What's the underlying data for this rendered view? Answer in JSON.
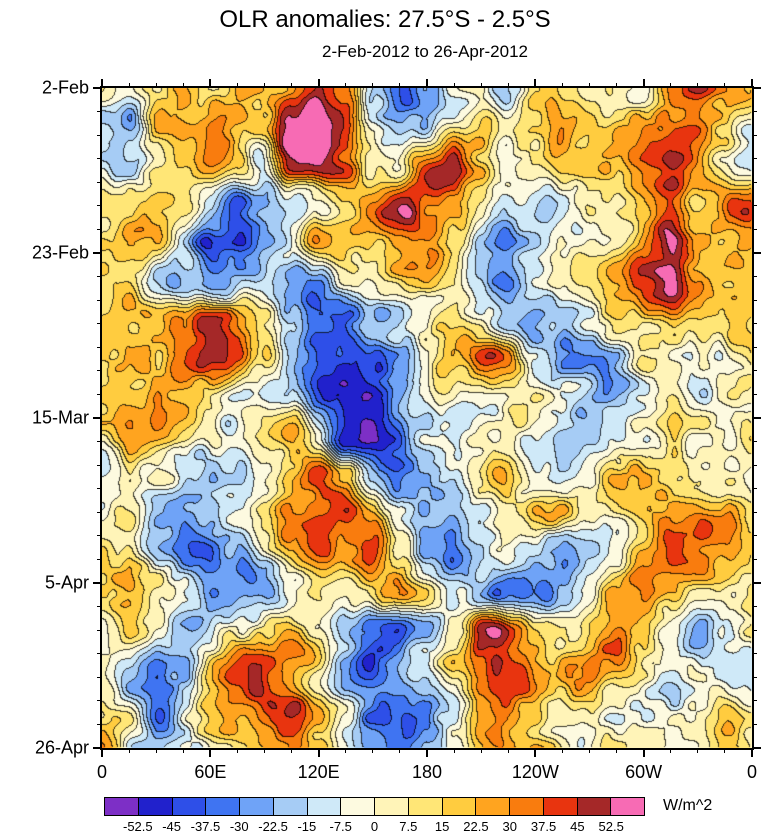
{
  "chart_data": {
    "type": "heatmap",
    "title": "OLR anomalies: 27.5°S - 2.5°S",
    "subtitle": "2-Feb-2012 to 26-Apr-2012",
    "units": "W/m^2",
    "legend": "none",
    "grid": "off",
    "x_axis": {
      "min": 0,
      "max": 360,
      "minor_tick_interval": 15,
      "major_ticks": [
        {
          "value": 0,
          "label": "0"
        },
        {
          "value": 60,
          "label": "60E"
        },
        {
          "value": 120,
          "label": "120E"
        },
        {
          "value": 180,
          "label": "180"
        },
        {
          "value": 240,
          "label": "120W"
        },
        {
          "value": 300,
          "label": "60W"
        },
        {
          "value": 360,
          "label": "0"
        }
      ]
    },
    "y_axis": {
      "min": 0,
      "max": 84,
      "minor_tick_interval": 3,
      "major_ticks": [
        {
          "value": 0,
          "label": "2-Feb"
        },
        {
          "value": 21,
          "label": "23-Feb"
        },
        {
          "value": 42,
          "label": "15-Mar"
        },
        {
          "value": 63,
          "label": "5-Apr"
        },
        {
          "value": 84,
          "label": "26-Apr"
        }
      ]
    },
    "levels": [
      -52.5,
      -45,
      -37.5,
      -30,
      -22.5,
      -15,
      -7.5,
      0,
      7.5,
      15,
      22.5,
      30,
      37.5,
      45,
      52.5
    ],
    "colors": [
      "#7D2FC6",
      "#2121CC",
      "#2E4FE8",
      "#3F74F2",
      "#6FA3F7",
      "#A6CCF5",
      "#CFE9F8",
      "#FDFAE0",
      "#FFF4B8",
      "#FFE676",
      "#FFCC3F",
      "#FFA41F",
      "#F97C0E",
      "#E8340F",
      "#A52828",
      "#F76BB4"
    ],
    "field": {
      "comment": "approximate large-scale OLR anomaly pattern (W/m^2), rows = time (2-Feb top to 26-Apr bottom), cols = longitude 0..360E step 15",
      "x_count": 25,
      "y_count": 18,
      "values": [
        [
          5,
          -5,
          10,
          25,
          10,
          20,
          15,
          35,
          45,
          20,
          -20,
          -35,
          -10,
          5,
          10,
          -15,
          5,
          10,
          5,
          15,
          10,
          30,
          35,
          10,
          5
        ],
        [
          -10,
          -15,
          15,
          35,
          30,
          20,
          15,
          40,
          55,
          35,
          -10,
          -25,
          -15,
          10,
          15,
          -10,
          -5,
          15,
          10,
          10,
          20,
          35,
          40,
          20,
          -10
        ],
        [
          -15,
          -20,
          5,
          25,
          35,
          15,
          -20,
          30,
          45,
          40,
          10,
          -5,
          25,
          30,
          5,
          -15,
          -10,
          5,
          15,
          10,
          25,
          35,
          25,
          5,
          -15
        ],
        [
          20,
          25,
          20,
          10,
          -10,
          -45,
          -40,
          -25,
          -10,
          10,
          20,
          35,
          30,
          20,
          5,
          -15,
          -20,
          -10,
          10,
          15,
          30,
          25,
          10,
          15,
          20
        ],
        [
          15,
          20,
          10,
          -10,
          -50,
          -45,
          -20,
          0,
          25,
          20,
          10,
          30,
          35,
          15,
          -5,
          -20,
          -15,
          0,
          10,
          20,
          35,
          45,
          20,
          10,
          15
        ],
        [
          10,
          5,
          -10,
          -20,
          -30,
          -25,
          -15,
          -20,
          -10,
          15,
          25,
          30,
          25,
          10,
          -10,
          -25,
          -10,
          5,
          15,
          25,
          40,
          55,
          30,
          5,
          10
        ],
        [
          5,
          15,
          25,
          35,
          40,
          25,
          5,
          -20,
          -35,
          -30,
          -20,
          -10,
          0,
          10,
          -5,
          -20,
          -30,
          -20,
          0,
          15,
          25,
          30,
          15,
          0,
          5
        ],
        [
          0,
          10,
          20,
          30,
          35,
          30,
          10,
          -25,
          -45,
          -50,
          -40,
          -20,
          -5,
          15,
          25,
          20,
          -10,
          -25,
          -20,
          -5,
          15,
          20,
          10,
          -5,
          0
        ],
        [
          5,
          15,
          25,
          25,
          15,
          5,
          -5,
          -20,
          -45,
          -55,
          -50,
          -35,
          -15,
          5,
          15,
          10,
          0,
          -10,
          -15,
          0,
          10,
          15,
          5,
          0,
          5
        ],
        [
          10,
          20,
          25,
          15,
          5,
          0,
          10,
          25,
          -10,
          -45,
          -55,
          -45,
          -25,
          -5,
          10,
          5,
          -10,
          -20,
          -15,
          -5,
          10,
          20,
          10,
          5,
          10
        ],
        [
          5,
          10,
          5,
          -5,
          -15,
          -10,
          10,
          35,
          45,
          20,
          -20,
          -45,
          -45,
          -30,
          -10,
          5,
          0,
          -10,
          -5,
          10,
          20,
          30,
          25,
          10,
          5
        ],
        [
          0,
          5,
          -5,
          -15,
          -10,
          0,
          15,
          30,
          40,
          50,
          30,
          -10,
          -35,
          -40,
          -25,
          -5,
          5,
          10,
          0,
          5,
          15,
          25,
          35,
          20,
          0
        ],
        [
          5,
          0,
          -10,
          -25,
          -35,
          -20,
          0,
          20,
          40,
          45,
          35,
          10,
          -25,
          -40,
          -30,
          -15,
          -25,
          -30,
          -10,
          10,
          25,
          30,
          20,
          10,
          5
        ],
        [
          15,
          25,
          20,
          0,
          -25,
          -25,
          -15,
          5,
          20,
          15,
          25,
          35,
          20,
          -5,
          -30,
          -45,
          -35,
          -15,
          0,
          20,
          30,
          20,
          10,
          15,
          15
        ],
        [
          10,
          15,
          5,
          -10,
          -15,
          0,
          15,
          25,
          15,
          -10,
          -35,
          -45,
          -30,
          -5,
          25,
          35,
          25,
          10,
          15,
          20,
          10,
          -10,
          -20,
          -5,
          10
        ],
        [
          5,
          -10,
          -25,
          -10,
          10,
          25,
          25,
          15,
          0,
          -20,
          -40,
          -35,
          -20,
          0,
          20,
          35,
          40,
          30,
          15,
          5,
          0,
          10,
          15,
          10,
          5
        ],
        [
          0,
          -5,
          -15,
          0,
          15,
          20,
          30,
          35,
          20,
          -5,
          -30,
          -35,
          -25,
          -10,
          10,
          25,
          30,
          25,
          10,
          -5,
          -15,
          -10,
          5,
          15,
          0
        ],
        [
          5,
          0,
          -5,
          5,
          10,
          15,
          20,
          25,
          10,
          -10,
          -25,
          -30,
          -20,
          -5,
          10,
          20,
          25,
          15,
          5,
          0,
          -10,
          -5,
          0,
          10,
          5
        ]
      ]
    },
    "noise": {
      "seed": 7,
      "octaves": [
        {
          "scale": 64,
          "amp": 17
        },
        {
          "scale": 30,
          "amp": 11
        },
        {
          "scale": 14,
          "amp": 7
        }
      ]
    }
  }
}
